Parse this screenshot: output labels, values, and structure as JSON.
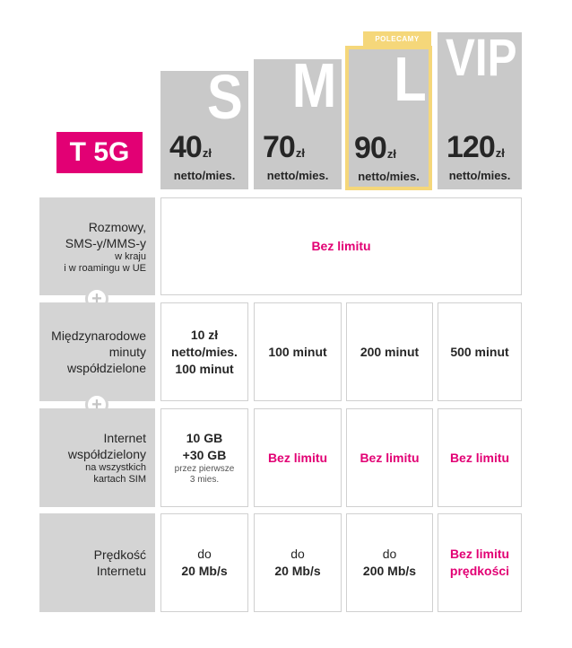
{
  "brand": {
    "logo_text": "T 5G",
    "accent_color": "#e20074",
    "recommended_color": "#f5d77a"
  },
  "recommended_badge": "POLECAMY",
  "plans": [
    {
      "letter": "S",
      "price": "40",
      "currency": "zł",
      "per": "netto/mies."
    },
    {
      "letter": "M",
      "price": "70",
      "currency": "zł",
      "per": "netto/mies."
    },
    {
      "letter": "L",
      "price": "90",
      "currency": "zł",
      "per": "netto/mies."
    },
    {
      "letter": "VIP",
      "price": "120",
      "currency": "zł",
      "per": "netto/mies."
    }
  ],
  "rows": {
    "calls": {
      "label_1": "Rozmowy,",
      "label_2": "SMS-y/MMS-y",
      "label_3": "w kraju",
      "label_4": "i w roamingu w UE",
      "value": "Bez limitu"
    },
    "intl": {
      "label_1": "Międzynarodowe",
      "label_2": "minuty",
      "label_3": "współdzielone",
      "s_1": "10 zł",
      "s_2": "netto/mies.",
      "s_3": "100 minut",
      "m": "100 minut",
      "l": "200 minut",
      "vip": "500 minut"
    },
    "internet": {
      "label_1": "Internet",
      "label_2": "współdzielony",
      "label_3": "na wszystkich",
      "label_4": "kartach SIM",
      "s_1": "10 GB",
      "s_2": "+30 GB",
      "s_3": "przez pierwsze",
      "s_4": "3 mies.",
      "m": "Bez limitu",
      "l": "Bez limitu",
      "vip": "Bez limitu"
    },
    "speed": {
      "label_1": "Prędkość",
      "label_2": "Internetu",
      "s_1": "do",
      "s_2": "20 Mb/s",
      "m_1": "do",
      "m_2": "20 Mb/s",
      "l_1": "do",
      "l_2": "200 Mb/s",
      "vip_1": "Bez limitu",
      "vip_2": "prędkości"
    }
  }
}
